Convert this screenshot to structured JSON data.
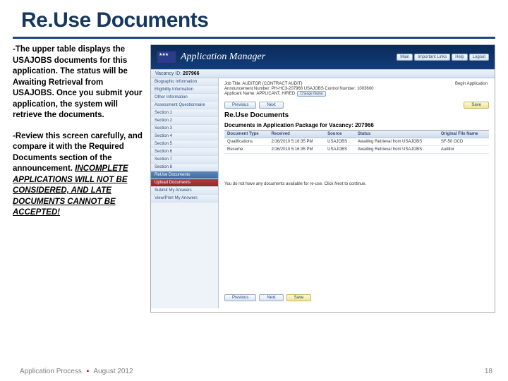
{
  "slide": {
    "title": "Re.Use Documents",
    "colors": {
      "title": "#17375e",
      "underline": "#1f497d"
    }
  },
  "left": {
    "p1": "-The upper table displays the USAJOBS documents for this application.  The status will be Awaiting Retrieval from USAJOBS.  Once you submit your application, the system will retrieve the documents.",
    "p2_lead": "-Review this screen carefully, and compare it with the Required Documents section of the announcement. ",
    "p2_warn": "INCOMPLETE APPLICATIONS WILL NOT BE CONSIDERED, AND LATE DOCUMENTS CANNOT BE ACCEPTED!"
  },
  "app": {
    "banner_title": "Application Manager",
    "banner_btns": [
      "Main",
      "Important Links",
      "Help",
      "Logout"
    ],
    "vacancy_label": "Vacancy ID:",
    "vacancy_id": "207966",
    "job_title": "Job Title: AUDITOR (CONTRACT AUDIT)",
    "announce": "Announcement Number: PH-HC3-207966   USAJOBS Control Number: 1003600",
    "begin": "Begin Application",
    "applicant": "Applicant Name: APPLICANT, HIRED",
    "change_name": "Change Name",
    "nav": [
      "Biographic Information",
      "Eligibility Information",
      "Other Information",
      "Assessment Questionnaire",
      "Section 1",
      "Section 2",
      "Section 3",
      "Section 4",
      "Section 5",
      "Section 6",
      "Section 7",
      "Section 8",
      "ReUse Documents",
      "Upload Documents",
      "Submit My Answers",
      "View/Print My Answers"
    ],
    "prev": "Previous",
    "next": "Next",
    "save": "Save",
    "section_title": "Re.Use Documents",
    "docs_heading": "Documents in Application Package for Vacancy: 207966",
    "table": {
      "headers": [
        "Document Type",
        "Received",
        "Source",
        "Status",
        "Original File Name"
      ],
      "rows": [
        [
          "Qualifications",
          "2/16/2010 5:16:35 PM",
          "USAJOBS",
          "Awaiting Retrieval from USAJOBS",
          "SF-50 OCD"
        ],
        [
          "Resume",
          "2/16/2010 5:16:35 PM",
          "USAJOBS",
          "Awaiting Retrieval from USAJOBS",
          "Auditor"
        ]
      ]
    },
    "reuse_note": "You do not have any documents available for re-use. Click Next to continue."
  },
  "footer": {
    "left_a": "Application Process",
    "left_b": "August 2012",
    "page": "18"
  }
}
